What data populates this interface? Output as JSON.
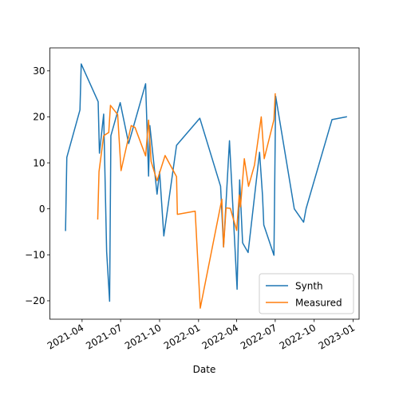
{
  "chart_data": {
    "type": "line",
    "xlabel": "Date",
    "ylabel": "",
    "title": "",
    "x_is_date": true,
    "xlim": [
      "2021-01-15",
      "2023-01-15"
    ],
    "ylim": [
      -24,
      35
    ],
    "x_ticks": [
      {
        "date": "2021-04-01",
        "label": "2021-04"
      },
      {
        "date": "2021-07-01",
        "label": "2021-07"
      },
      {
        "date": "2021-10-01",
        "label": "2021-10"
      },
      {
        "date": "2022-01-01",
        "label": "2022-01"
      },
      {
        "date": "2022-04-01",
        "label": "2022-04"
      },
      {
        "date": "2022-07-01",
        "label": "2022-07"
      },
      {
        "date": "2022-10-01",
        "label": "2022-10"
      },
      {
        "date": "2023-01-01",
        "label": "2023-01"
      }
    ],
    "y_ticks": [
      -20,
      -10,
      0,
      10,
      20,
      30
    ],
    "grid": false,
    "legend_position": "lower-right",
    "series": [
      {
        "name": "Synth",
        "color": "#1f77b4",
        "points": [
          [
            "2021-02-21",
            -4.7
          ],
          [
            "2021-02-24",
            11.2
          ],
          [
            "2021-03-27",
            21.5
          ],
          [
            "2021-03-30",
            31.5
          ],
          [
            "2021-05-09",
            23.3
          ],
          [
            "2021-05-12",
            12.1
          ],
          [
            "2021-05-22",
            20.6
          ],
          [
            "2021-05-29",
            -9.3
          ],
          [
            "2021-06-05",
            -20.1
          ],
          [
            "2021-06-08",
            15.9
          ],
          [
            "2021-06-30",
            23.1
          ],
          [
            "2021-07-20",
            14.2
          ],
          [
            "2021-08-29",
            27.2
          ],
          [
            "2021-09-05",
            7.1
          ],
          [
            "2021-09-08",
            18.1
          ],
          [
            "2021-09-25",
            3.2
          ],
          [
            "2021-10-01",
            8.1
          ],
          [
            "2021-10-11",
            -5.9
          ],
          [
            "2021-11-10",
            13.8
          ],
          [
            "2022-01-04",
            19.7
          ],
          [
            "2022-02-22",
            4.9
          ],
          [
            "2022-03-01",
            -8.3
          ],
          [
            "2022-03-15",
            14.8
          ],
          [
            "2022-04-02",
            -17.5
          ],
          [
            "2022-04-08",
            6.3
          ],
          [
            "2022-04-15",
            -7.4
          ],
          [
            "2022-04-28",
            -9.5
          ],
          [
            "2022-05-25",
            12.3
          ],
          [
            "2022-06-01",
            2.9
          ],
          [
            "2022-06-04",
            -3.5
          ],
          [
            "2022-06-28",
            -10.1
          ],
          [
            "2022-07-02",
            24.5
          ],
          [
            "2022-08-15",
            0.0
          ],
          [
            "2022-09-06",
            -2.9
          ],
          [
            "2022-09-12",
            0.1
          ],
          [
            "2022-11-12",
            19.4
          ],
          [
            "2022-12-16",
            20.0
          ]
        ]
      },
      {
        "name": "Measured",
        "color": "#ff7f0e",
        "points": [
          [
            "2021-05-08",
            -2.2
          ],
          [
            "2021-05-11",
            8.1
          ],
          [
            "2021-05-22",
            15.9
          ],
          [
            "2021-06-03",
            16.6
          ],
          [
            "2021-06-07",
            22.5
          ],
          [
            "2021-06-24",
            20.5
          ],
          [
            "2021-07-02",
            8.3
          ],
          [
            "2021-07-26",
            18.1
          ],
          [
            "2021-08-04",
            17.7
          ],
          [
            "2021-08-29",
            11.5
          ],
          [
            "2021-09-05",
            19.3
          ],
          [
            "2021-09-11",
            10.3
          ],
          [
            "2021-09-25",
            6.1
          ],
          [
            "2021-10-14",
            11.6
          ],
          [
            "2021-11-10",
            7.0
          ],
          [
            "2021-11-12",
            -1.2
          ],
          [
            "2021-12-24",
            -0.5
          ],
          [
            "2022-01-05",
            -21.6
          ],
          [
            "2022-02-25",
            2.1
          ],
          [
            "2022-03-01",
            -8.3
          ],
          [
            "2022-03-07",
            0.2
          ],
          [
            "2022-03-17",
            0.1
          ],
          [
            "2022-04-01",
            -4.7
          ],
          [
            "2022-04-07",
            3.0
          ],
          [
            "2022-04-10",
            0.4
          ],
          [
            "2022-04-19",
            10.9
          ],
          [
            "2022-04-29",
            4.9
          ],
          [
            "2022-05-13",
            9.5
          ],
          [
            "2022-05-29",
            20.0
          ],
          [
            "2022-06-05",
            10.9
          ],
          [
            "2022-06-28",
            19.4
          ],
          [
            "2022-07-01",
            25.0
          ]
        ]
      }
    ]
  }
}
